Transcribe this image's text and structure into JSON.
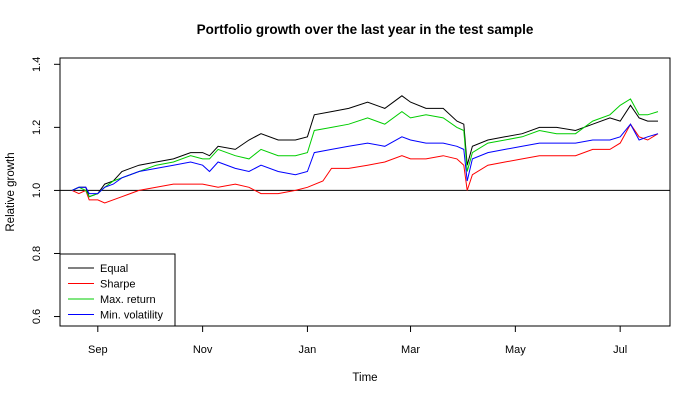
{
  "chart_data": {
    "type": "line",
    "title": "Portfolio growth over the last year in the test sample",
    "xlabel": "Time",
    "ylabel": "Relative growth",
    "x_range": [
      "2019-08-10",
      "2020-07-30"
    ],
    "ylim": [
      0.57,
      1.42
    ],
    "x_ticks": [
      {
        "date": "2019-09-01",
        "label": "Sep"
      },
      {
        "date": "2019-11-01",
        "label": "Nov"
      },
      {
        "date": "2020-01-01",
        "label": "Jan"
      },
      {
        "date": "2020-03-01",
        "label": "Mar"
      },
      {
        "date": "2020-05-01",
        "label": "May"
      },
      {
        "date": "2020-07-01",
        "label": "Jul"
      }
    ],
    "y_ticks": [
      0.6,
      0.8,
      1.0,
      1.2,
      1.4
    ],
    "y_tick_labels": [
      "0.6",
      "0.8",
      "1.0",
      "1.2",
      "1.4"
    ],
    "reference_line": 1.0,
    "grid": false,
    "legend_position": "bottom-left",
    "series": [
      {
        "name": "Equal",
        "color": "#000000",
        "points": [
          [
            "2019-08-17",
            1.0
          ],
          [
            "2019-08-21",
            1.01
          ],
          [
            "2019-08-25",
            1.01
          ],
          [
            "2019-08-27",
            0.98
          ],
          [
            "2019-09-01",
            0.99
          ],
          [
            "2019-09-05",
            1.02
          ],
          [
            "2019-09-10",
            1.03
          ],
          [
            "2019-09-15",
            1.06
          ],
          [
            "2019-09-25",
            1.08
          ],
          [
            "2019-10-05",
            1.09
          ],
          [
            "2019-10-15",
            1.1
          ],
          [
            "2019-10-25",
            1.12
          ],
          [
            "2019-11-01",
            1.12
          ],
          [
            "2019-11-05",
            1.11
          ],
          [
            "2019-11-10",
            1.14
          ],
          [
            "2019-11-20",
            1.13
          ],
          [
            "2019-11-28",
            1.16
          ],
          [
            "2019-12-05",
            1.18
          ],
          [
            "2019-12-15",
            1.16
          ],
          [
            "2019-12-25",
            1.16
          ],
          [
            "2020-01-01",
            1.17
          ],
          [
            "2020-01-05",
            1.24
          ],
          [
            "2020-01-15",
            1.25
          ],
          [
            "2020-01-25",
            1.26
          ],
          [
            "2020-02-05",
            1.28
          ],
          [
            "2020-02-15",
            1.26
          ],
          [
            "2020-02-25",
            1.3
          ],
          [
            "2020-03-01",
            1.28
          ],
          [
            "2020-03-10",
            1.26
          ],
          [
            "2020-03-20",
            1.26
          ],
          [
            "2020-03-28",
            1.22
          ],
          [
            "2020-04-01",
            1.21
          ],
          [
            "2020-04-03",
            1.08
          ],
          [
            "2020-04-06",
            1.14
          ],
          [
            "2020-04-15",
            1.16
          ],
          [
            "2020-04-25",
            1.17
          ],
          [
            "2020-05-05",
            1.18
          ],
          [
            "2020-05-15",
            1.2
          ],
          [
            "2020-05-25",
            1.2
          ],
          [
            "2020-06-05",
            1.19
          ],
          [
            "2020-06-15",
            1.21
          ],
          [
            "2020-06-25",
            1.23
          ],
          [
            "2020-07-01",
            1.22
          ],
          [
            "2020-07-07",
            1.27
          ],
          [
            "2020-07-12",
            1.23
          ],
          [
            "2020-07-17",
            1.22
          ],
          [
            "2020-07-23",
            1.22
          ]
        ]
      },
      {
        "name": "Sharpe",
        "color": "#ff0000",
        "points": [
          [
            "2019-08-17",
            1.0
          ],
          [
            "2019-08-21",
            0.99
          ],
          [
            "2019-08-25",
            1.0
          ],
          [
            "2019-08-27",
            0.97
          ],
          [
            "2019-09-01",
            0.97
          ],
          [
            "2019-09-05",
            0.96
          ],
          [
            "2019-09-15",
            0.98
          ],
          [
            "2019-09-25",
            1.0
          ],
          [
            "2019-10-05",
            1.01
          ],
          [
            "2019-10-15",
            1.02
          ],
          [
            "2019-10-25",
            1.02
          ],
          [
            "2019-11-01",
            1.02
          ],
          [
            "2019-11-10",
            1.01
          ],
          [
            "2019-11-20",
            1.02
          ],
          [
            "2019-11-28",
            1.01
          ],
          [
            "2019-12-05",
            0.99
          ],
          [
            "2019-12-15",
            0.99
          ],
          [
            "2019-12-25",
            1.0
          ],
          [
            "2020-01-01",
            1.01
          ],
          [
            "2020-01-10",
            1.03
          ],
          [
            "2020-01-15",
            1.07
          ],
          [
            "2020-01-25",
            1.07
          ],
          [
            "2020-02-05",
            1.08
          ],
          [
            "2020-02-15",
            1.09
          ],
          [
            "2020-02-25",
            1.11
          ],
          [
            "2020-03-01",
            1.1
          ],
          [
            "2020-03-10",
            1.1
          ],
          [
            "2020-03-20",
            1.11
          ],
          [
            "2020-03-28",
            1.1
          ],
          [
            "2020-04-01",
            1.08
          ],
          [
            "2020-04-03",
            1.0
          ],
          [
            "2020-04-06",
            1.05
          ],
          [
            "2020-04-15",
            1.08
          ],
          [
            "2020-04-25",
            1.09
          ],
          [
            "2020-05-05",
            1.1
          ],
          [
            "2020-05-15",
            1.11
          ],
          [
            "2020-05-25",
            1.11
          ],
          [
            "2020-06-05",
            1.11
          ],
          [
            "2020-06-15",
            1.13
          ],
          [
            "2020-06-25",
            1.13
          ],
          [
            "2020-07-01",
            1.15
          ],
          [
            "2020-07-07",
            1.21
          ],
          [
            "2020-07-12",
            1.17
          ],
          [
            "2020-07-17",
            1.16
          ],
          [
            "2020-07-23",
            1.18
          ]
        ]
      },
      {
        "name": "Max. return",
        "color": "#00cd00",
        "points": [
          [
            "2019-08-17",
            1.0
          ],
          [
            "2019-08-21",
            1.01
          ],
          [
            "2019-08-25",
            1.0
          ],
          [
            "2019-08-27",
            0.98
          ],
          [
            "2019-09-01",
            0.99
          ],
          [
            "2019-09-05",
            1.01
          ],
          [
            "2019-09-10",
            1.03
          ],
          [
            "2019-09-15",
            1.04
          ],
          [
            "2019-09-25",
            1.06
          ],
          [
            "2019-10-05",
            1.08
          ],
          [
            "2019-10-15",
            1.09
          ],
          [
            "2019-10-25",
            1.11
          ],
          [
            "2019-11-01",
            1.1
          ],
          [
            "2019-11-05",
            1.1
          ],
          [
            "2019-11-10",
            1.13
          ],
          [
            "2019-11-20",
            1.11
          ],
          [
            "2019-11-28",
            1.1
          ],
          [
            "2019-12-05",
            1.13
          ],
          [
            "2019-12-15",
            1.11
          ],
          [
            "2019-12-25",
            1.11
          ],
          [
            "2020-01-01",
            1.12
          ],
          [
            "2020-01-05",
            1.19
          ],
          [
            "2020-01-15",
            1.2
          ],
          [
            "2020-01-25",
            1.21
          ],
          [
            "2020-02-05",
            1.23
          ],
          [
            "2020-02-15",
            1.21
          ],
          [
            "2020-02-25",
            1.25
          ],
          [
            "2020-03-01",
            1.23
          ],
          [
            "2020-03-10",
            1.24
          ],
          [
            "2020-03-20",
            1.23
          ],
          [
            "2020-03-28",
            1.2
          ],
          [
            "2020-04-01",
            1.19
          ],
          [
            "2020-04-03",
            1.06
          ],
          [
            "2020-04-06",
            1.12
          ],
          [
            "2020-04-15",
            1.15
          ],
          [
            "2020-04-25",
            1.16
          ],
          [
            "2020-05-05",
            1.17
          ],
          [
            "2020-05-15",
            1.19
          ],
          [
            "2020-05-25",
            1.18
          ],
          [
            "2020-06-05",
            1.18
          ],
          [
            "2020-06-15",
            1.22
          ],
          [
            "2020-06-25",
            1.24
          ],
          [
            "2020-07-01",
            1.27
          ],
          [
            "2020-07-07",
            1.29
          ],
          [
            "2020-07-12",
            1.24
          ],
          [
            "2020-07-17",
            1.24
          ],
          [
            "2020-07-23",
            1.25
          ]
        ]
      },
      {
        "name": "Min. volatility",
        "color": "#0000ff",
        "points": [
          [
            "2019-08-17",
            1.0
          ],
          [
            "2019-08-21",
            1.01
          ],
          [
            "2019-08-25",
            1.01
          ],
          [
            "2019-08-27",
            0.99
          ],
          [
            "2019-09-01",
            0.99
          ],
          [
            "2019-09-05",
            1.01
          ],
          [
            "2019-09-10",
            1.02
          ],
          [
            "2019-09-15",
            1.04
          ],
          [
            "2019-09-25",
            1.06
          ],
          [
            "2019-10-05",
            1.07
          ],
          [
            "2019-10-15",
            1.08
          ],
          [
            "2019-10-25",
            1.09
          ],
          [
            "2019-11-01",
            1.08
          ],
          [
            "2019-11-05",
            1.06
          ],
          [
            "2019-11-10",
            1.09
          ],
          [
            "2019-11-20",
            1.07
          ],
          [
            "2019-11-28",
            1.06
          ],
          [
            "2019-12-05",
            1.08
          ],
          [
            "2019-12-15",
            1.06
          ],
          [
            "2019-12-25",
            1.05
          ],
          [
            "2020-01-01",
            1.06
          ],
          [
            "2020-01-05",
            1.12
          ],
          [
            "2020-01-15",
            1.13
          ],
          [
            "2020-01-25",
            1.14
          ],
          [
            "2020-02-05",
            1.15
          ],
          [
            "2020-02-15",
            1.14
          ],
          [
            "2020-02-25",
            1.17
          ],
          [
            "2020-03-01",
            1.16
          ],
          [
            "2020-03-10",
            1.15
          ],
          [
            "2020-03-20",
            1.15
          ],
          [
            "2020-03-28",
            1.14
          ],
          [
            "2020-04-01",
            1.13
          ],
          [
            "2020-04-03",
            1.03
          ],
          [
            "2020-04-06",
            1.1
          ],
          [
            "2020-04-15",
            1.12
          ],
          [
            "2020-04-25",
            1.13
          ],
          [
            "2020-05-05",
            1.14
          ],
          [
            "2020-05-15",
            1.15
          ],
          [
            "2020-05-25",
            1.15
          ],
          [
            "2020-06-05",
            1.15
          ],
          [
            "2020-06-15",
            1.16
          ],
          [
            "2020-06-25",
            1.16
          ],
          [
            "2020-07-01",
            1.17
          ],
          [
            "2020-07-07",
            1.21
          ],
          [
            "2020-07-12",
            1.16
          ],
          [
            "2020-07-17",
            1.17
          ],
          [
            "2020-07-23",
            1.18
          ]
        ]
      }
    ]
  }
}
